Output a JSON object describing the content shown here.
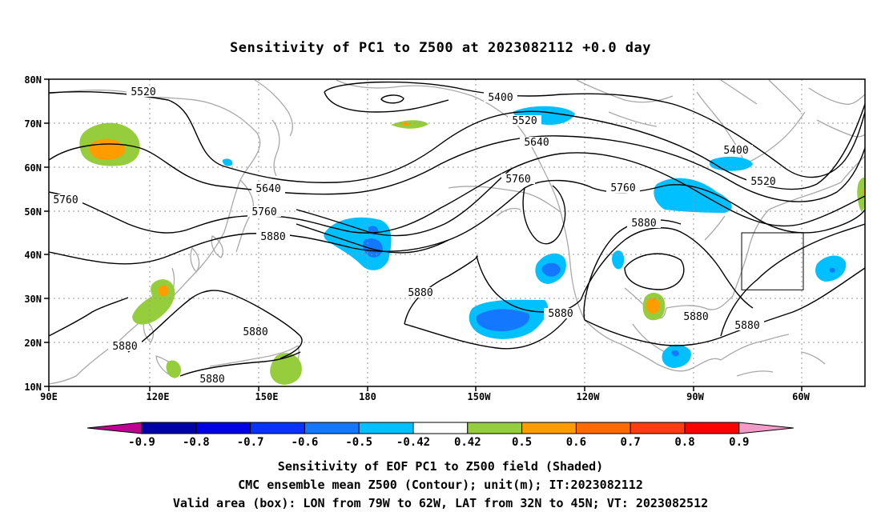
{
  "title": "Sensitivity of PC1 to Z500 at 2023082112 +0.0 day",
  "map": {
    "lon_range": [
      90,
      315
    ],
    "lat_range": [
      10,
      80
    ],
    "x_ticks": [
      "90E",
      "120E",
      "150E",
      "180",
      "150W",
      "120W",
      "90W",
      "60W"
    ],
    "y_ticks": [
      "80N",
      "70N",
      "60N",
      "50N",
      "40N",
      "30N",
      "20N",
      "10N"
    ],
    "contour_labels": [
      "5520",
      "5400",
      "5520",
      "5640",
      "5400",
      "5520",
      "5760",
      "5640",
      "5760",
      "5760",
      "5880",
      "5760",
      "5880",
      "5880",
      "5880",
      "5880",
      "5880",
      "5880",
      "5880",
      "5880",
      "5880"
    ],
    "valid_box": {
      "lon_west": -79,
      "lon_east": -62,
      "lat_south": 32,
      "lat_north": 45
    },
    "colors": {
      "strong_neg": "#0050e0",
      "neg": "#00c0ff",
      "pos": "#96cd3c",
      "strong_pos": "#ff9d00",
      "coast": "#a8a8a8",
      "contour": "#000000"
    }
  },
  "colorbar": {
    "labels": [
      "-0.9",
      "-0.8",
      "-0.7",
      "-0.6",
      "-0.5",
      "-0.42",
      "0.42",
      "0.5",
      "0.6",
      "0.7",
      "0.8",
      "0.9"
    ],
    "colors": [
      "#0000a8",
      "#0000e6",
      "#0a32ff",
      "#1478ff",
      "#00c0ff",
      "#ffffff",
      "#96cd3c",
      "#ff9d00",
      "#ff6a00",
      "#ff3c14",
      "#ff0000"
    ],
    "low_color": "#c00090",
    "high_color": "#f29ac8"
  },
  "footer": {
    "line1": "Sensitivity of EOF PC1 to Z500 field (Shaded)",
    "line2": "CMC ensemble mean Z500 (Contour); unit(m); IT:2023082112",
    "line3": "Valid area (box): LON from 79W to 62W, LAT from 32N to 45N; VT: 2023082512"
  }
}
